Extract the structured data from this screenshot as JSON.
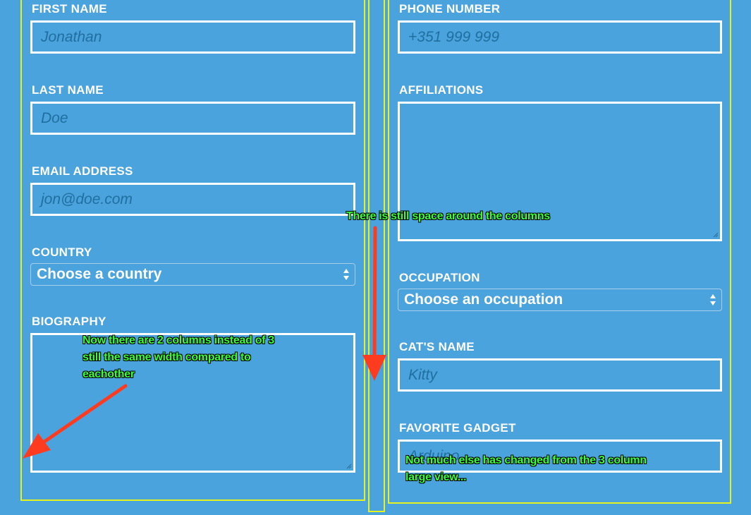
{
  "form": {
    "left": {
      "first_name": {
        "label": "FIRST NAME",
        "placeholder": "Jonathan"
      },
      "last_name": {
        "label": "LAST NAME",
        "placeholder": "Doe"
      },
      "email": {
        "label": "EMAIL ADDRESS",
        "placeholder": "jon@doe.com"
      },
      "country": {
        "label": "COUNTRY",
        "selected": "Choose a country"
      },
      "biography": {
        "label": "BIOGRAPHY"
      }
    },
    "right": {
      "phone": {
        "label": "PHONE NUMBER",
        "placeholder": "+351 999 999"
      },
      "affiliations": {
        "label": "AFFILIATIONS"
      },
      "occupation": {
        "label": "OCCUPATION",
        "selected": "Choose an occupation"
      },
      "cat_name": {
        "label": "CAT'S NAME",
        "placeholder": "Kitty"
      },
      "gadget": {
        "label": "FAVORITE GADGET",
        "placeholder": "Arduino"
      }
    }
  },
  "annotations": {
    "gutter_note": "There is still space around the columns",
    "columns_note_line1": "Now there are 2 columns instead of 3",
    "columns_note_line2": "still the same width compared to",
    "columns_note_line3": "eachother",
    "bottom_note_line1": "Not much else has changed from the 3 column",
    "bottom_note_line2": "large view..."
  },
  "colors": {
    "background": "#4aa3dc",
    "highlight_box": "#e6f21e",
    "note_text": "#39ff3b",
    "arrow": "#ff3b1f"
  }
}
